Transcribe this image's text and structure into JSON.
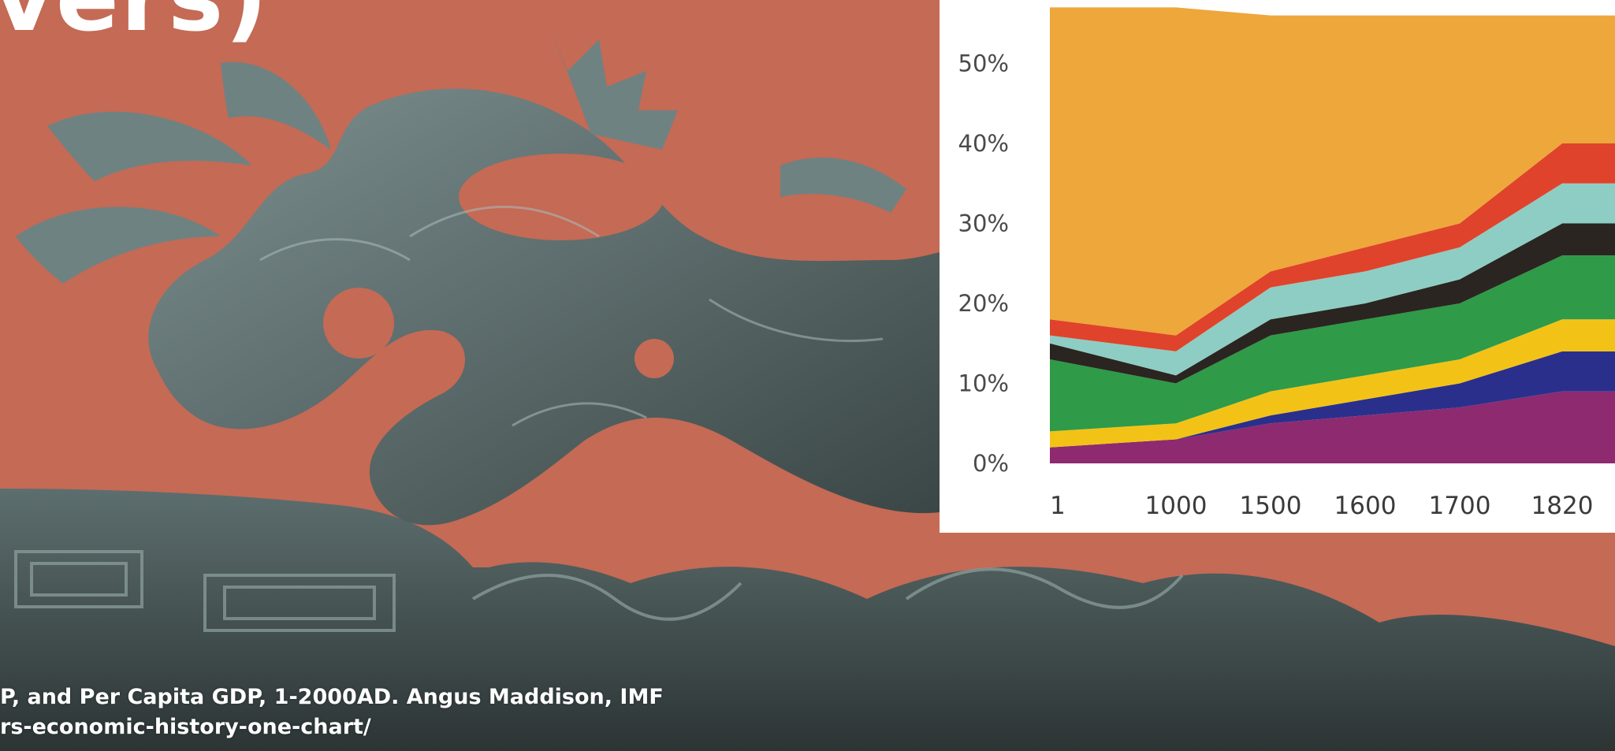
{
  "page": {
    "title_fragment": "vers)",
    "background_color": "#c46a55",
    "photo_subject": "dragon-roof-ornament",
    "caption": {
      "line1": "P, and Per Capita GDP, 1-2000AD. Angus Maddison, IMF",
      "line2": "rs-economic-history-one-chart/"
    }
  },
  "chart_data": {
    "type": "area",
    "x": [
      "1",
      "1000",
      "1500",
      "1600",
      "1700",
      "1820"
    ],
    "y_ticks": [
      "0%",
      "10%",
      "20%",
      "30%",
      "40%",
      "50%"
    ],
    "ylim": [
      0,
      57
    ],
    "series": [
      {
        "color": "#8e2a6f",
        "values": [
          2,
          3,
          5,
          6,
          7,
          9
        ]
      },
      {
        "color": "#2b2f8c",
        "values": [
          0,
          0,
          1,
          2,
          3,
          5
        ]
      },
      {
        "color": "#f2c316",
        "values": [
          2,
          2,
          3,
          3,
          3,
          4
        ]
      },
      {
        "color": "#2f9a48",
        "values": [
          9,
          5,
          7,
          7,
          7,
          8
        ]
      },
      {
        "color": "#2a2520",
        "values": [
          2,
          1,
          2,
          2,
          3,
          4
        ]
      },
      {
        "color": "#8ecdc3",
        "values": [
          1,
          3,
          4,
          4,
          4,
          5
        ]
      },
      {
        "color": "#e0432b",
        "values": [
          2,
          2,
          2,
          3,
          3,
          5
        ]
      },
      {
        "color": "#eda73a",
        "values": [
          39,
          41,
          32,
          29,
          26,
          16
        ]
      }
    ]
  }
}
